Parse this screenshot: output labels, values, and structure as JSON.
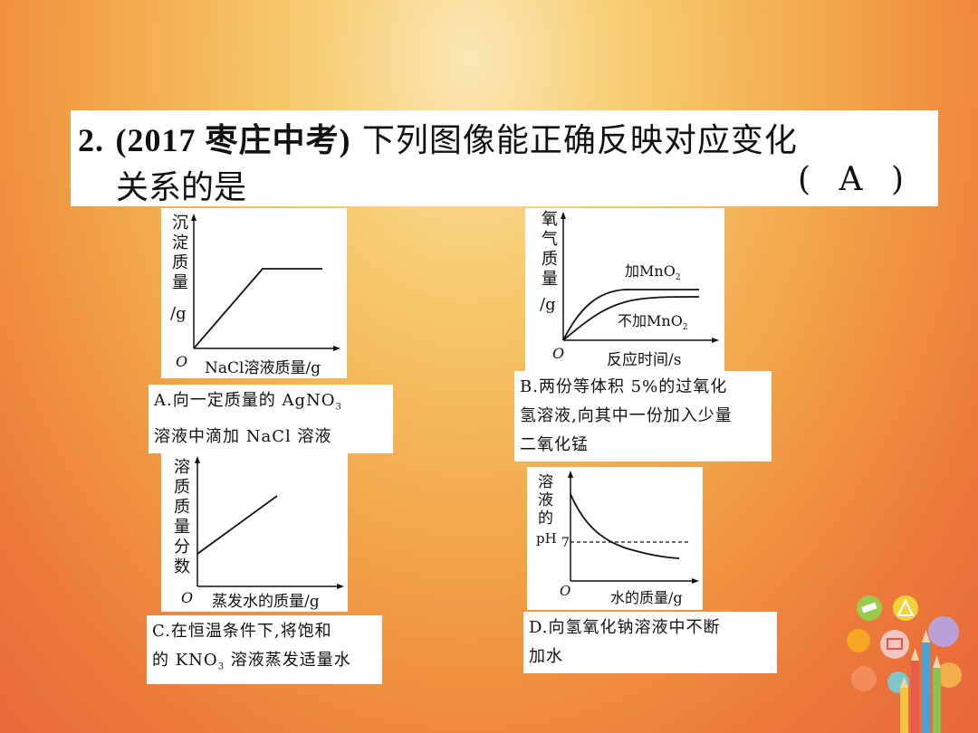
{
  "question": {
    "number": "2.",
    "source": "(2017 枣庄中考)",
    "stem_line1": "下列图像能正确反映对应变化",
    "stem_line2": "关系的是",
    "answer": "( A )"
  },
  "charts": {
    "a": {
      "ylabel": [
        "沉",
        "淀",
        "质",
        "量",
        "/g"
      ],
      "origin": "O",
      "xlabel": "NaCl溶液质量/g"
    },
    "b": {
      "ylabel": [
        "氧",
        "气",
        "质",
        "量",
        "/g"
      ],
      "origin": "O",
      "xlabel": "反应时间/s",
      "series1": "加MnO",
      "series1_sub": "2",
      "series2": "不加MnO",
      "series2_sub": "2"
    },
    "c": {
      "ylabel": [
        "溶",
        "质",
        "质",
        "量",
        "分",
        "数"
      ],
      "origin": "O",
      "xlabel": "蒸发水的质量/g"
    },
    "d": {
      "ylabel": [
        "溶",
        "液",
        "的",
        "pH"
      ],
      "origin": "O",
      "xlabel": "水的质量/g",
      "ref_label": "7"
    }
  },
  "chart_data": [
    {
      "type": "line",
      "id": "a",
      "series": [
        {
          "x": [
            0,
            0.55,
            1
          ],
          "y": [
            0,
            1,
            1
          ]
        }
      ],
      "xlabel": "NaCl溶液质量/g",
      "ylabel": "沉淀质量/g"
    },
    {
      "type": "line",
      "id": "b",
      "series": [
        {
          "name": "加MnO2",
          "x": [
            0,
            0.2,
            0.35,
            1
          ],
          "y": [
            0,
            0.7,
            0.82,
            0.82
          ]
        },
        {
          "name": "不加MnO2",
          "x": [
            0,
            0.35,
            0.6,
            1
          ],
          "y": [
            0,
            0.55,
            0.8,
            0.82
          ]
        }
      ],
      "xlabel": "反应时间/s",
      "ylabel": "氧气质量/g"
    },
    {
      "type": "line",
      "id": "c",
      "series": [
        {
          "x": [
            0,
            1
          ],
          "y": [
            0.3,
            1
          ]
        }
      ],
      "xlabel": "蒸发水的质量/g",
      "ylabel": "溶质质量分数"
    },
    {
      "type": "line",
      "id": "d",
      "series": [
        {
          "x": [
            0,
            0.2,
            0.5,
            1
          ],
          "y": [
            1,
            0.65,
            0.45,
            0.35
          ]
        }
      ],
      "xlabel": "水的质量/g",
      "ylabel": "溶液的pH",
      "reference_line": 7
    }
  ],
  "options": {
    "a_line1": "A.向一定质量的 AgNO",
    "a_sub": "3",
    "a_line2": "溶液中滴加 NaCl 溶液",
    "b_line1": "B.两份等体积 5%的过氧化",
    "b_line2": "氢溶液,向其中一份加入少量",
    "b_line3": "二氧化锰",
    "c_line1": "C.在恒温条件下,将饱和",
    "c_line2_a": "的 KNO",
    "c_sub": "3",
    "c_line2_b": " 溶液蒸发适量水",
    "d_line1": "D.向氢氧化钠溶液中不断",
    "d_line2": "加水"
  }
}
